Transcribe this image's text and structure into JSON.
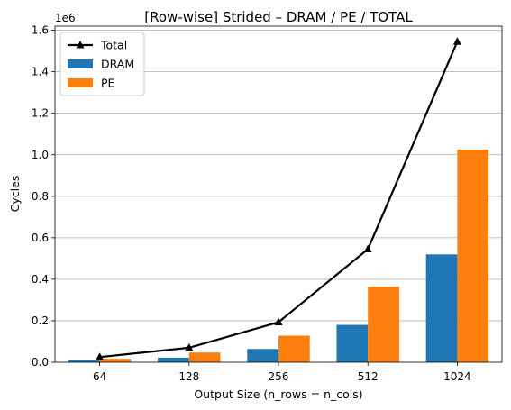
{
  "chart_data": {
    "type": "bar",
    "title": "[Row-wise] Strided – DRAM / PE / TOTAL",
    "xlabel": "Output Size (n_rows = n_cols)",
    "ylabel": "Cycles",
    "y_offset_label": "1e6",
    "categories": [
      "64",
      "128",
      "256",
      "512",
      "1024"
    ],
    "ylim": [
      0,
      1620000
    ],
    "yticks": [
      0,
      200000,
      400000,
      600000,
      800000,
      1000000,
      1200000,
      1400000,
      1600000
    ],
    "ytick_labels": [
      "0.0",
      "0.2",
      "0.4",
      "0.6",
      "0.8",
      "1.0",
      "1.2",
      "1.4",
      "1.6"
    ],
    "grid": "y",
    "legend_position": "top-left",
    "series": [
      {
        "name": "Total",
        "kind": "line",
        "color": "#000000",
        "marker": "triangle",
        "values": [
          25000,
          70000,
          193000,
          545000,
          1545000
        ]
      },
      {
        "name": "DRAM",
        "kind": "bar",
        "color": "#1f77b4",
        "values": [
          8500,
          22000,
          64000,
          180000,
          520000
        ]
      },
      {
        "name": "PE",
        "kind": "bar",
        "color": "#ff7f0e",
        "values": [
          16500,
          47000,
          128000,
          364000,
          1025000
        ]
      }
    ]
  }
}
